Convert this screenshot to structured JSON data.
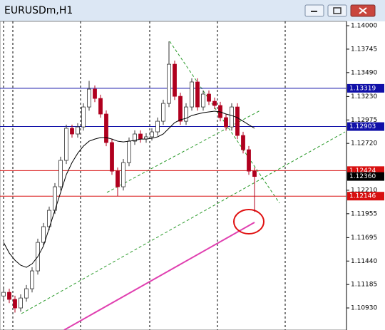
{
  "chart_data": {
    "type": "candlestick",
    "title": "EURUSDm,H1",
    "ylim": [
      1.1069,
      1.14047
    ],
    "yticks": [
      {
        "value": 1.14,
        "label": "1.14000"
      },
      1.13745,
      {
        "value": 1.1349,
        "label": "1.13490"
      },
      {
        "value": 1.1323,
        "label": "1.13230"
      },
      1.12975,
      {
        "value": 1.1272,
        "label": "1.12720"
      },
      {
        "value": 1.1221,
        "label": "1.12210"
      },
      1.11955,
      1.11695,
      {
        "value": 1.1144,
        "label": "1.11440"
      },
      1.11185,
      {
        "value": 1.1093,
        "label": "1.10930"
      }
    ],
    "open": [
      1.1106,
      1.111,
      1.11023,
      1.1093,
      1.11038,
      1.11139,
      1.11333,
      1.11643,
      1.11814,
      1.11992,
      1.12248,
      1.12535,
      1.12884,
      1.12822,
      1.12899,
      1.13116,
      1.1331,
      1.13209,
      1.13039,
      1.12729,
      1.12418,
      1.12248,
      1.12511,
      1.12744,
      1.12822,
      1.12767,
      1.12791,
      1.12845,
      1.12961,
      1.13155,
      1.13581,
      1.13232,
      1.12961,
      1.13116,
      1.13388,
      1.13116,
      1.13256,
      1.13178,
      1.13132,
      1.13,
      1.12899,
      1.13116,
      1.12806,
      1.12651,
      1.12418
    ],
    "high": [
      1.1114,
      1.1114,
      1.11063,
      1.11078,
      1.11179,
      1.11373,
      1.11683,
      1.11854,
      1.12032,
      1.12288,
      1.12575,
      1.12924,
      1.12924,
      1.12939,
      1.13156,
      1.134,
      1.1335,
      1.13249,
      1.13079,
      1.12769,
      1.12458,
      1.12551,
      1.12784,
      1.12862,
      1.12862,
      1.12831,
      1.12885,
      1.13001,
      1.13195,
      1.13829,
      1.13621,
      1.13272,
      1.13156,
      1.13428,
      1.13428,
      1.13296,
      1.13296,
      1.13218,
      1.13172,
      1.1304,
      1.13156,
      1.13156,
      1.12846,
      1.12691,
      1.12458
    ],
    "low": [
      1.1102,
      1.10983,
      1.1088,
      1.1089,
      1.10998,
      1.11099,
      1.11293,
      1.11603,
      1.11774,
      1.11952,
      1.12208,
      1.12495,
      1.12782,
      1.12782,
      1.12859,
      1.13076,
      1.13169,
      1.12999,
      1.12689,
      1.12378,
      1.12147,
      1.12208,
      1.12471,
      1.12704,
      1.12727,
      1.12727,
      1.12751,
      1.12805,
      1.12921,
      1.13115,
      1.13192,
      1.12921,
      1.12921,
      1.13076,
      1.13076,
      1.13076,
      1.13138,
      1.13092,
      1.1296,
      1.12859,
      1.12859,
      1.12766,
      1.12611,
      1.12378,
      1.11975
    ],
    "close": [
      1.111,
      1.11023,
      1.1093,
      1.11038,
      1.11139,
      1.11333,
      1.11643,
      1.11814,
      1.11992,
      1.12248,
      1.12535,
      1.12884,
      1.12822,
      1.12899,
      1.13116,
      1.1331,
      1.13209,
      1.13039,
      1.12729,
      1.12418,
      1.12248,
      1.12511,
      1.12744,
      1.12822,
      1.12767,
      1.12791,
      1.12845,
      1.12961,
      1.13155,
      1.13581,
      1.13232,
      1.12961,
      1.13116,
      1.13388,
      1.13116,
      1.13256,
      1.13178,
      1.13132,
      1.13,
      1.12899,
      1.13116,
      1.12806,
      1.12651,
      1.12418,
      1.1236
    ],
    "up_color": "#ffffff",
    "down_color": "#b0001e",
    "ma": {
      "color": "#000000",
      "values": [
        1.11643,
        1.11527,
        1.11449,
        1.11395,
        1.11372,
        1.1141,
        1.11488,
        1.11604,
        1.11798,
        1.11992,
        1.12186,
        1.1238,
        1.12511,
        1.12612,
        1.1269,
        1.12744,
        1.12767,
        1.12783,
        1.12783,
        1.12767,
        1.12744,
        1.12736,
        1.12744,
        1.12752,
        1.12767,
        1.12767,
        1.12775,
        1.12791,
        1.12822,
        1.12884,
        1.12946,
        1.12977,
        1.12992,
        1.13023,
        1.13039,
        1.13054,
        1.13062,
        1.1307,
        1.13062,
        1.13039,
        1.13023,
        1.13,
        1.12961,
        1.12922,
        1.12884
      ]
    },
    "levels": [
      {
        "value": 1.13319,
        "color": "#1010a8"
      },
      {
        "value": 1.12903,
        "color": "#1010a8"
      },
      {
        "value": 1.12424,
        "color": "#d81010"
      },
      {
        "value": 1.12146,
        "color": "#d81010"
      }
    ],
    "current_price": {
      "value": 1.1236,
      "label": "1.12360",
      "color": "#000000"
    }
  }
}
